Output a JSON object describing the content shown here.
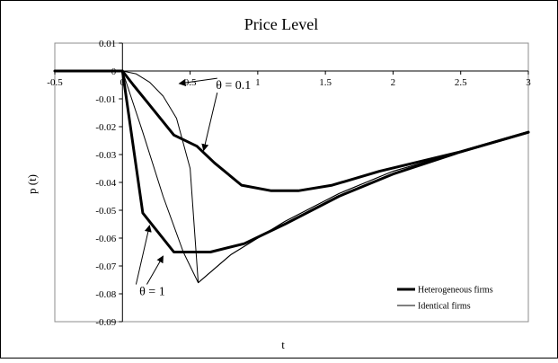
{
  "chart_data": {
    "type": "line",
    "title": "Price Level",
    "xlabel": "t",
    "ylabel": "p (t)",
    "xlim": [
      -0.5,
      3
    ],
    "ylim": [
      -0.09,
      0.01
    ],
    "x_ticks": [
      -0.5,
      0,
      0.5,
      1,
      1.5,
      2,
      2.5,
      3
    ],
    "x_tick_labels": [
      "-0.5",
      "0",
      "0.5",
      "1",
      "1.5",
      "2",
      "2.5",
      "3"
    ],
    "y_ticks": [
      0.01,
      0,
      -0.01,
      -0.02,
      -0.03,
      -0.04,
      -0.05,
      -0.06,
      -0.07,
      -0.08,
      -0.09
    ],
    "y_tick_labels": [
      "0.01",
      "0",
      "-0.01",
      "-0.02",
      "-0.03",
      "-0.04",
      "-0.05",
      "-0.06",
      "-0.07",
      "-0.08",
      "-0.09"
    ],
    "grid": false,
    "legend_position": "bottom-right",
    "series": [
      {
        "name": "Heterogeneous firms",
        "style": "thick",
        "x": [
          -0.5,
          0,
          0.08,
          0.18,
          0.38,
          0.55,
          0.68,
          0.88,
          1.1,
          1.3,
          1.55,
          1.9,
          2.5,
          3.0
        ],
        "y": [
          0,
          0,
          -0.005,
          -0.011,
          -0.023,
          -0.027,
          -0.033,
          -0.041,
          -0.043,
          -0.043,
          -0.041,
          -0.036,
          -0.029,
          -0.022
        ]
      },
      {
        "name": "Identical firms",
        "style": "thin",
        "x": [
          -0.5,
          0,
          0.1,
          0.2,
          0.3,
          0.4,
          0.5,
          0.56,
          0.8,
          1.2,
          1.6,
          2.0,
          2.5,
          3.0
        ],
        "y": [
          0,
          0,
          -0.001,
          -0.004,
          -0.009,
          -0.017,
          -0.035,
          -0.076,
          -0.066,
          -0.054,
          -0.044,
          -0.036,
          -0.029,
          -0.022
        ]
      },
      {
        "name": "Heterogeneous firms",
        "style": "thick",
        "x": [
          0,
          0.15,
          0.38,
          0.55,
          0.65,
          0.9,
          1.2,
          1.6,
          2.0,
          2.5,
          3.0
        ],
        "y": [
          0,
          -0.051,
          -0.065,
          -0.065,
          -0.065,
          -0.062,
          -0.055,
          -0.045,
          -0.037,
          -0.029,
          -0.022
        ]
      },
      {
        "name": "Identical firms",
        "style": "thin",
        "x": [
          0,
          0.15,
          0.3,
          0.45,
          0.56,
          0.8,
          1.2,
          1.6,
          2.0,
          2.5,
          3.0
        ],
        "y": [
          0,
          -0.022,
          -0.045,
          -0.065,
          -0.076,
          -0.066,
          -0.054,
          -0.044,
          -0.036,
          -0.029,
          -0.022
        ]
      }
    ],
    "annotations": [
      {
        "text": "θ = 0.1",
        "x": 0.82,
        "y": -0.0065,
        "arrows_to": [
          [
            0.42,
            -0.0045
          ],
          [
            0.6,
            -0.0285
          ]
        ]
      },
      {
        "text": "θ = 1",
        "x": 0.22,
        "y": -0.0805,
        "arrows_to": [
          [
            0.2,
            -0.0555
          ],
          [
            0.3,
            -0.0665
          ]
        ]
      }
    ],
    "legend": [
      {
        "label": "Heterogeneous firms",
        "style": "thick"
      },
      {
        "label": "Identical firms",
        "style": "thin"
      }
    ]
  }
}
